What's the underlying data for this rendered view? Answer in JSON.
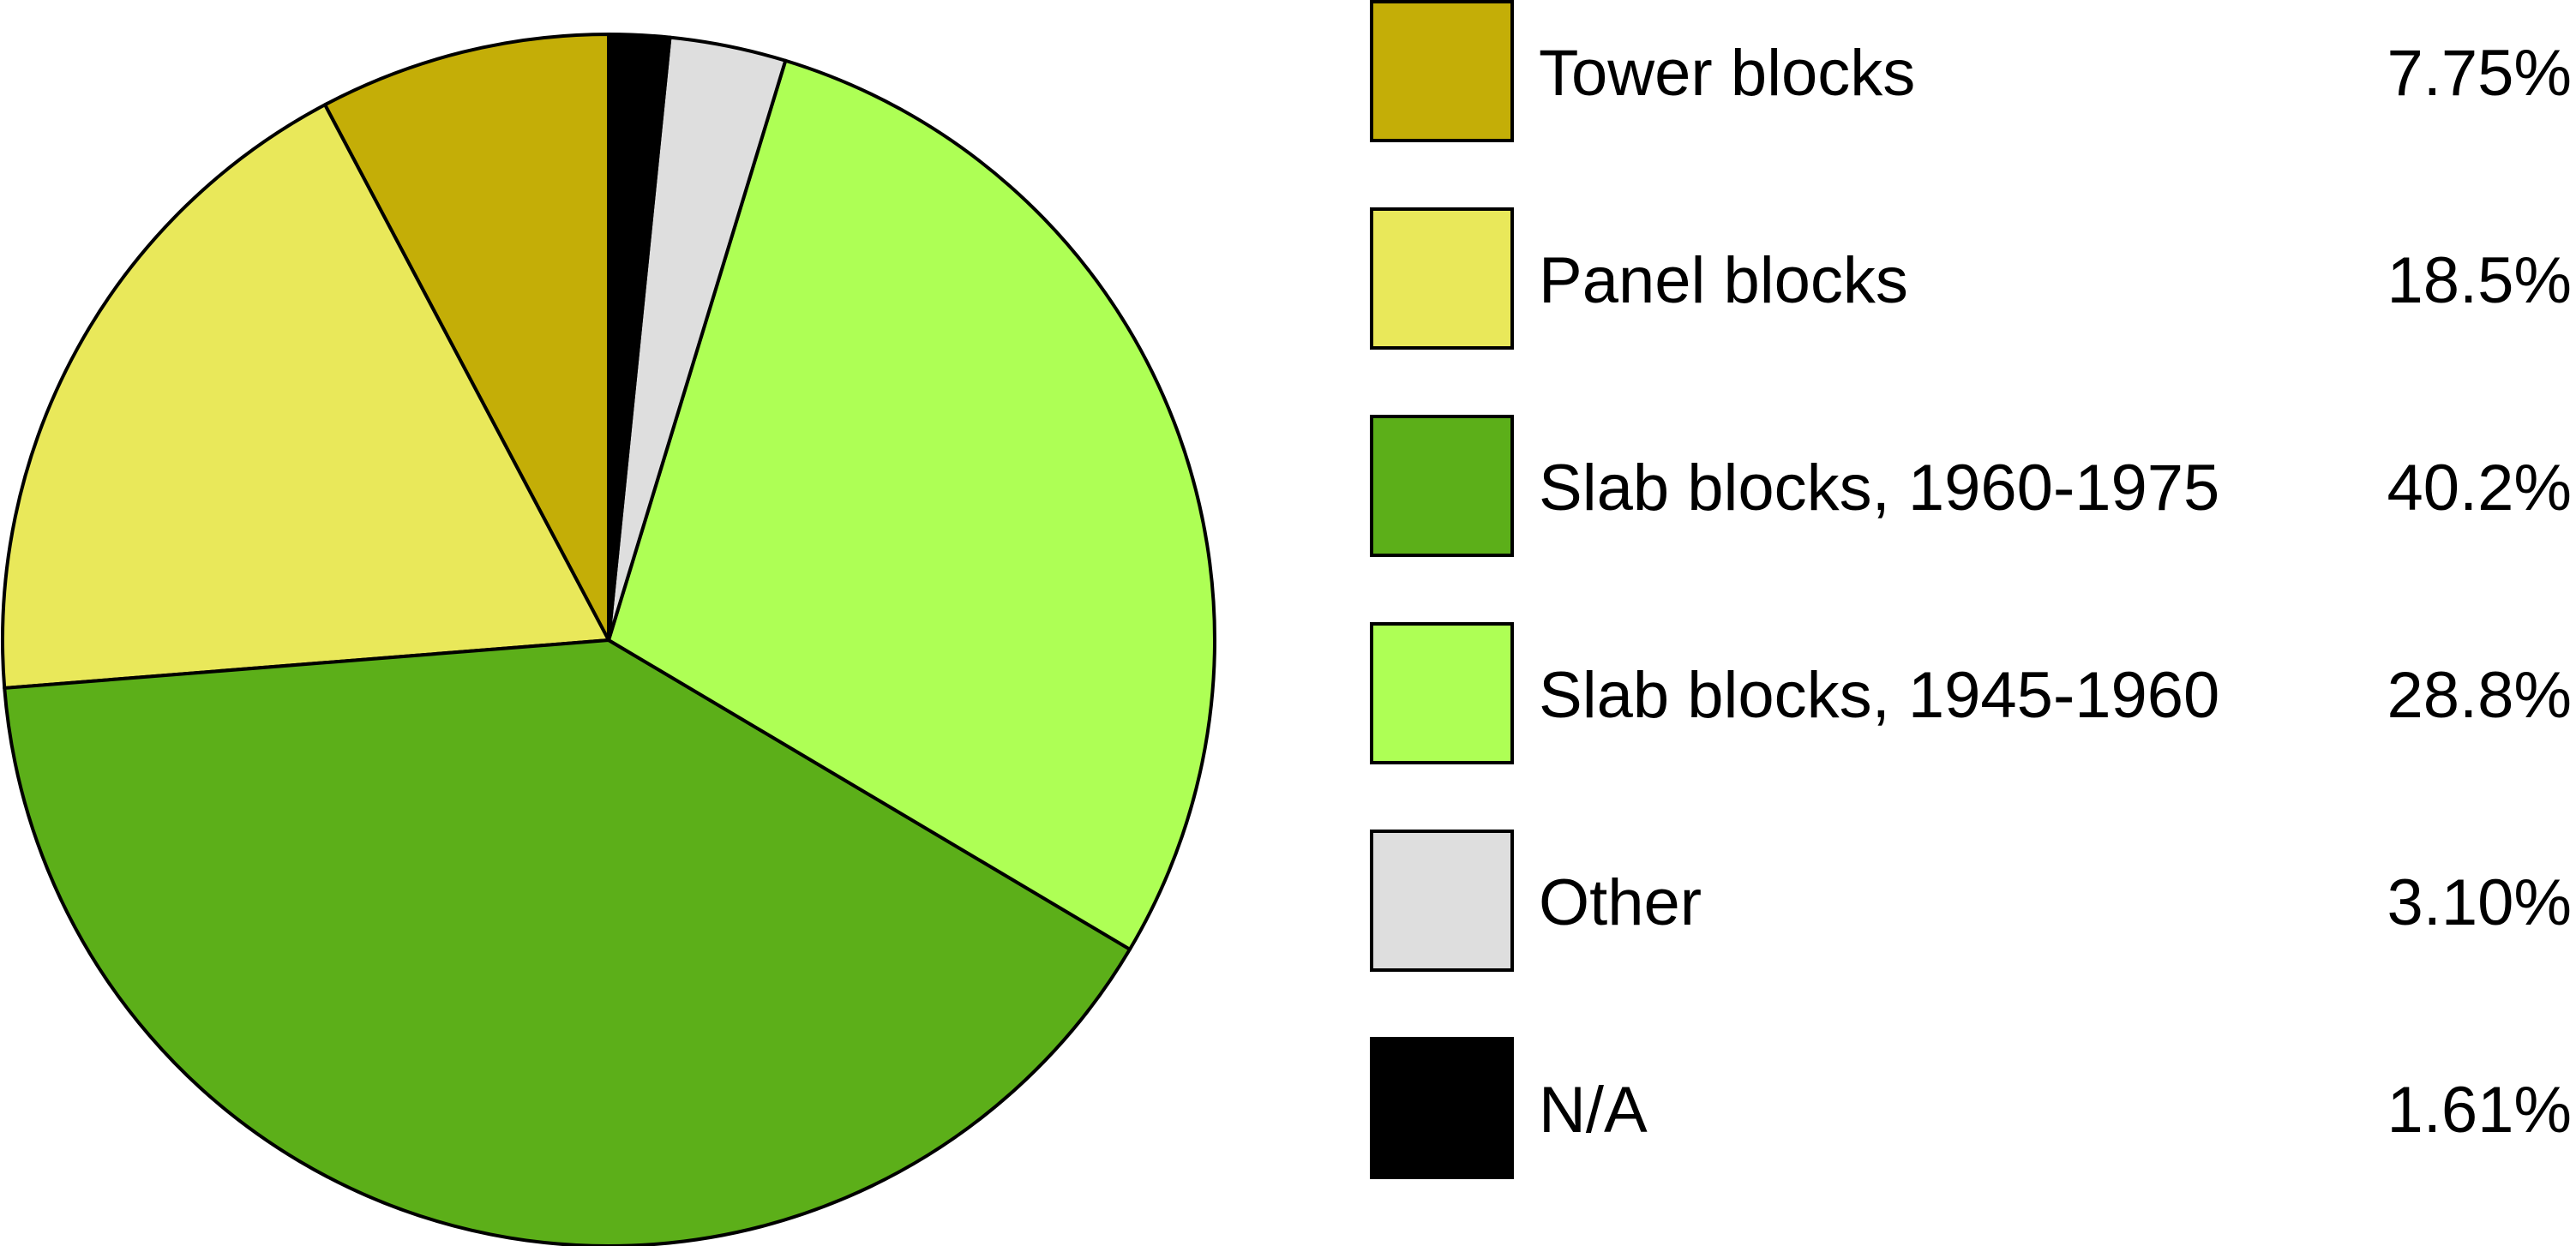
{
  "chart_data": {
    "type": "pie",
    "title": "",
    "start_angle_deg": 0,
    "direction": "counterclockwise",
    "legend_position": "right",
    "slices": [
      {
        "label": "Tower blocks",
        "value": 7.75,
        "value_label": "7.75%",
        "color": "#c4ae07"
      },
      {
        "label": "Panel blocks",
        "value": 18.5,
        "value_label": "18.5%",
        "color": "#e9e85a"
      },
      {
        "label": "Slab blocks, 1960-1975",
        "value": 40.2,
        "value_label": "40.2%",
        "color": "#5caf19"
      },
      {
        "label": "Slab blocks, 1945-1960",
        "value": 28.8,
        "value_label": "28.8%",
        "color": "#aeff55"
      },
      {
        "label": "Other",
        "value": 3.1,
        "value_label": "3.10%",
        "color": "#dedede"
      },
      {
        "label": "N/A",
        "value": 1.61,
        "value_label": "1.61%",
        "color": "#000000"
      }
    ]
  }
}
